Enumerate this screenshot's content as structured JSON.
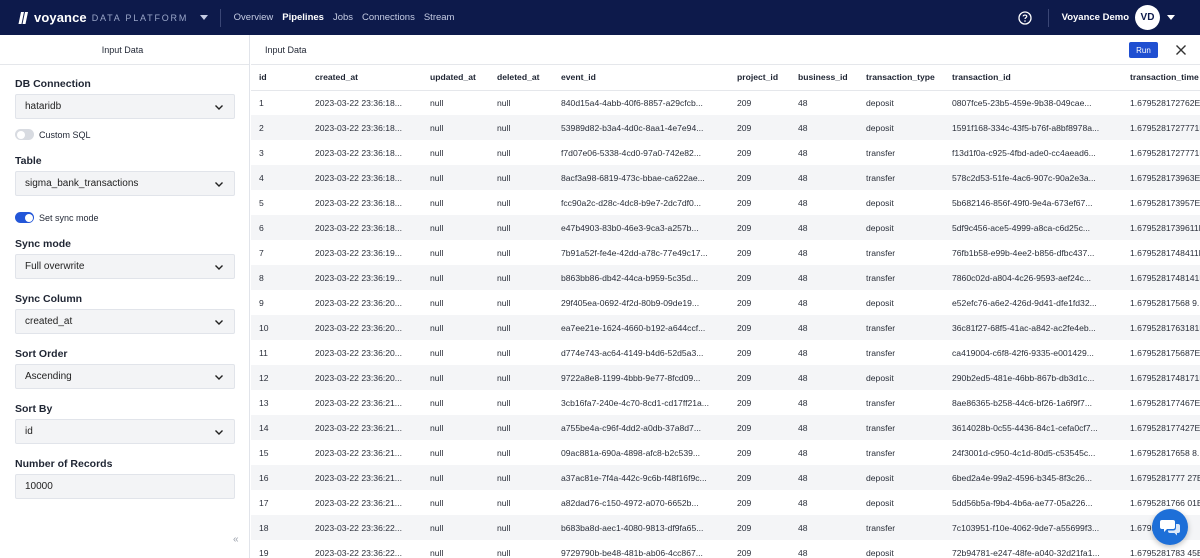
{
  "brand": {
    "name": "voyance",
    "sub": "DATA PLATFORM"
  },
  "nav": [
    "Overview",
    "Pipelines",
    "Jobs",
    "Connections",
    "Stream"
  ],
  "nav_active": "Pipelines",
  "user": {
    "name": "Voyance Demo",
    "initials": "VD"
  },
  "left": {
    "header": "Input Data",
    "db_connection": {
      "label": "DB Connection",
      "value": "hataridb"
    },
    "custom_sql": {
      "label": "Custom SQL",
      "on": false
    },
    "table": {
      "label": "Table",
      "value": "sigma_bank_transactions"
    },
    "sync_toggle": {
      "label": "Set sync mode",
      "on": true
    },
    "sync_mode": {
      "label": "Sync mode",
      "value": "Full overwrite"
    },
    "sync_column": {
      "label": "Sync Column",
      "value": "created_at"
    },
    "sort_order": {
      "label": "Sort Order",
      "value": "Ascending"
    },
    "sort_by": {
      "label": "Sort By",
      "value": "id"
    },
    "num_records": {
      "label": "Number of Records",
      "value": "10000"
    },
    "collapse_glyph": "«"
  },
  "right": {
    "title": "Input Data",
    "run_label": "Run"
  },
  "table": {
    "columns": [
      "id",
      "created_at",
      "updated_at",
      "deleted_at",
      "event_id",
      "project_id",
      "business_id",
      "transaction_type",
      "transaction_id",
      "transaction_time"
    ],
    "rows": [
      [
        "1",
        "2023-03-22 23:36:18...",
        "null",
        "null",
        "840d15a4-4abb-40f6-8857-a29cfcb...",
        "209",
        "48",
        "deposit",
        "0807fce5-23b5-459e-9b38-049cae...",
        "1.679528172762E..."
      ],
      [
        "2",
        "2023-03-22 23:36:18...",
        "null",
        "null",
        "53989d82-b3a4-4d0c-8aa1-4e7e94...",
        "209",
        "48",
        "deposit",
        "1591f168-334c-43f5-b76f-a8bf8978a...",
        "1.6795281727771E12"
      ],
      [
        "3",
        "2023-03-22 23:36:18...",
        "null",
        "null",
        "f7d07e06-5338-4cd0-97a0-742e82...",
        "209",
        "48",
        "transfer",
        "f13d1f0a-c925-4fbd-ade0-cc4aead6...",
        "1.6795281727771E12"
      ],
      [
        "4",
        "2023-03-22 23:36:18...",
        "null",
        "null",
        "8acf3a98-6819-473c-bbae-ca622ae...",
        "209",
        "48",
        "transfer",
        "578c2d53-51fe-4ac6-907c-90a2e3a...",
        "1.679528173963E..."
      ],
      [
        "5",
        "2023-03-22 23:36:18...",
        "null",
        "null",
        "fcc90a2c-d28c-4dc8-b9e7-2dc7df0...",
        "209",
        "48",
        "deposit",
        "5b682146-856f-49f0-9e4a-673ef67...",
        "1.679528173957E..."
      ],
      [
        "6",
        "2023-03-22 23:36:18...",
        "null",
        "null",
        "e47b4903-83b0-46e3-9ca3-a257b...",
        "209",
        "48",
        "deposit",
        "5df9c456-ace5-4999-a8ca-c6d25c...",
        "1.6795281739611E12"
      ],
      [
        "7",
        "2023-03-22 23:36:19...",
        "null",
        "null",
        "7b91a52f-fe4e-42dd-a78c-77e49c17...",
        "209",
        "48",
        "transfer",
        "76fb1b58-e99b-4ee2-b856-dfbc437...",
        "1.6795281748411E12"
      ],
      [
        "8",
        "2023-03-22 23:36:19...",
        "null",
        "null",
        "b863bb86-db42-44ca-b959-5c35d...",
        "209",
        "48",
        "transfer",
        "7860c02d-a804-4c26-9593-aef24c...",
        "1.6795281748141E12"
      ],
      [
        "9",
        "2023-03-22 23:36:20...",
        "null",
        "null",
        "29f405ea-0692-4f2d-80b9-09de19...",
        "209",
        "48",
        "deposit",
        "e52efc76-a6e2-426d-9d41-dfe1fd32...",
        "1.67952817568 9..."
      ],
      [
        "10",
        "2023-03-22 23:36:20...",
        "null",
        "null",
        "ea7ee21e-1624-4660-b192-a644ccf...",
        "209",
        "48",
        "transfer",
        "36c81f27-68f5-41ac-a842-ac2fe4eb...",
        "1.6795281763181E12"
      ],
      [
        "11",
        "2023-03-22 23:36:20...",
        "null",
        "null",
        "d774e743-ac64-4149-b4d6-52d5a3...",
        "209",
        "48",
        "transfer",
        "ca419004-c6f8-42f6-9335-e001429...",
        "1.679528175687E..."
      ],
      [
        "12",
        "2023-03-22 23:36:20...",
        "null",
        "null",
        "9722a8e8-1199-4bbb-9e77-8fcd09...",
        "209",
        "48",
        "deposit",
        "290b2ed5-481e-46bb-867b-db3d1c...",
        "1.6795281748171E12"
      ],
      [
        "13",
        "2023-03-22 23:36:21...",
        "null",
        "null",
        "3cb16fa7-240e-4c70-8cd1-cd17ff21a...",
        "209",
        "48",
        "transfer",
        "8ae86365-b258-44c6-bf26-1a6f9f7...",
        "1.679528177467E..."
      ],
      [
        "14",
        "2023-03-22 23:36:21...",
        "null",
        "null",
        "a755be4a-c96f-4dd2-a0db-37a8d7...",
        "209",
        "48",
        "transfer",
        "3614028b-0c55-4436-84c1-cefa0cf7...",
        "1.679528177427E..."
      ],
      [
        "15",
        "2023-03-22 23:36:21...",
        "null",
        "null",
        "09ac881a-690a-4898-afc8-b2c539...",
        "209",
        "48",
        "transfer",
        "24f3001d-c950-4c1d-80d5-c53545c...",
        "1.67952817658 8..."
      ],
      [
        "16",
        "2023-03-22 23:36:21...",
        "null",
        "null",
        "a37ac81e-7f4a-442c-9c6b-f48f16f9c...",
        "209",
        "48",
        "deposit",
        "6bed2a4e-99a2-4596-b345-8f3c26...",
        "1.6795281777 27E12"
      ],
      [
        "17",
        "2023-03-22 23:36:21...",
        "null",
        "null",
        "a82dad76-c150-4972-a070-6652b...",
        "209",
        "48",
        "deposit",
        "5dd56b5a-f9b4-4b6a-ae77-05a226...",
        "1.6795281766 01E..."
      ],
      [
        "18",
        "2023-03-22 23:36:22...",
        "null",
        "null",
        "b683ba8d-aec1-4080-9813-df9fa65...",
        "209",
        "48",
        "transfer",
        "7c103951-f10e-4062-9de7-a55699f3...",
        "1.679528177"
      ],
      [
        "19",
        "2023-03-22 23:36:22...",
        "null",
        "null",
        "9729790b-be48-481b-ab06-4cc867...",
        "209",
        "48",
        "deposit",
        "72b94781-e247-48fe-a040-32d21fa1...",
        "1.6795281783 45E..."
      ]
    ]
  },
  "colors": {
    "nav_bg": "#0d1a4b",
    "accent": "#1f4fd1",
    "toggle_on": "#2356d8",
    "chat": "#1d6fd8"
  }
}
